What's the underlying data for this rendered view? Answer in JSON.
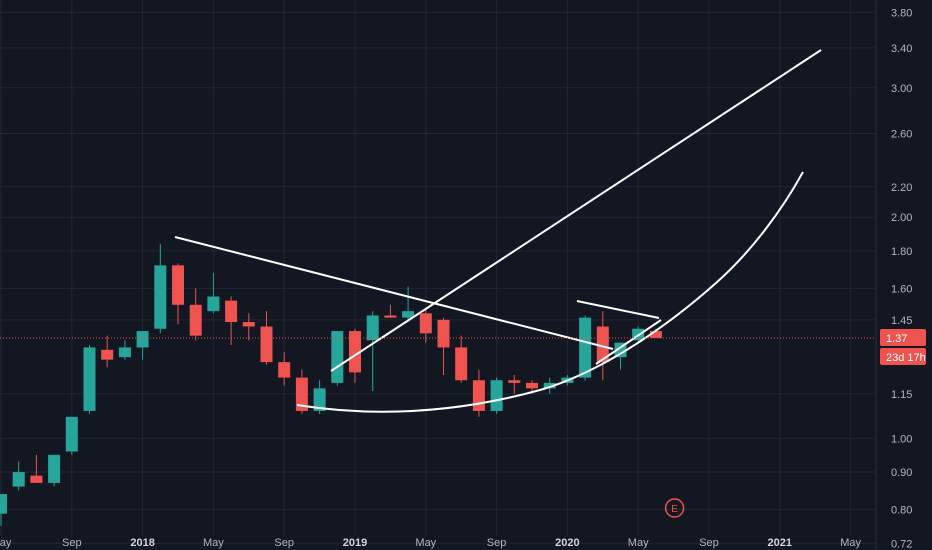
{
  "chart_data": {
    "type": "candlestick",
    "interval": "monthly",
    "y_scale": "log",
    "ylim": [
      0.705,
      3.95
    ],
    "grid": true,
    "colors": {
      "up": "#26a69a",
      "down": "#ef5350",
      "background": "#131722",
      "grid": "#232733",
      "drawings": "#ffffff",
      "price_line": "#ef5350",
      "axis_text": "#b2b5be"
    },
    "y_ticks": [
      "3.80",
      "3.40",
      "3.00",
      "2.60",
      "2.20",
      "2.00",
      "1.80",
      "1.60",
      "1.45",
      "1.15",
      "1.00",
      "0.90",
      "0.80",
      "0.72"
    ],
    "x_ticks": [
      {
        "t": 0,
        "label": "May",
        "bold": false
      },
      {
        "t": 4,
        "label": "Sep",
        "bold": false
      },
      {
        "t": 8,
        "label": "2018",
        "bold": true
      },
      {
        "t": 12,
        "label": "May",
        "bold": false
      },
      {
        "t": 16,
        "label": "Sep",
        "bold": false
      },
      {
        "t": 20,
        "label": "2019",
        "bold": true
      },
      {
        "t": 24,
        "label": "May",
        "bold": false
      },
      {
        "t": 28,
        "label": "Sep",
        "bold": false
      },
      {
        "t": 32,
        "label": "2020",
        "bold": true
      },
      {
        "t": 36,
        "label": "May",
        "bold": false
      },
      {
        "t": 40,
        "label": "Sep",
        "bold": false
      },
      {
        "t": 44,
        "label": "2021",
        "bold": true
      },
      {
        "t": 48,
        "label": "May",
        "bold": false
      }
    ],
    "candles": [
      {
        "t": 0,
        "o": 0.79,
        "h": 0.84,
        "l": 0.76,
        "c": 0.84
      },
      {
        "t": 1,
        "o": 0.86,
        "h": 0.93,
        "l": 0.85,
        "c": 0.9
      },
      {
        "t": 2,
        "o": 0.89,
        "h": 0.95,
        "l": 0.87,
        "c": 0.87
      },
      {
        "t": 3,
        "o": 0.87,
        "h": 0.95,
        "l": 0.86,
        "c": 0.95
      },
      {
        "t": 4,
        "o": 0.96,
        "h": 1.07,
        "l": 0.95,
        "c": 1.07
      },
      {
        "t": 5,
        "o": 1.09,
        "h": 1.34,
        "l": 1.08,
        "c": 1.33
      },
      {
        "t": 6,
        "o": 1.32,
        "h": 1.38,
        "l": 1.25,
        "c": 1.28
      },
      {
        "t": 7,
        "o": 1.29,
        "h": 1.36,
        "l": 1.28,
        "c": 1.33
      },
      {
        "t": 8,
        "o": 1.33,
        "h": 1.39,
        "l": 1.28,
        "c": 1.4
      },
      {
        "t": 9,
        "o": 1.41,
        "h": 1.84,
        "l": 1.39,
        "c": 1.72
      },
      {
        "t": 10,
        "o": 1.72,
        "h": 1.73,
        "l": 1.43,
        "c": 1.52
      },
      {
        "t": 11,
        "o": 1.52,
        "h": 1.6,
        "l": 1.36,
        "c": 1.38
      },
      {
        "t": 12,
        "o": 1.49,
        "h": 1.68,
        "l": 1.48,
        "c": 1.56
      },
      {
        "t": 13,
        "o": 1.54,
        "h": 1.56,
        "l": 1.34,
        "c": 1.44
      },
      {
        "t": 14,
        "o": 1.44,
        "h": 1.48,
        "l": 1.36,
        "c": 1.42
      },
      {
        "t": 15,
        "o": 1.42,
        "h": 1.49,
        "l": 1.26,
        "c": 1.27
      },
      {
        "t": 16,
        "o": 1.27,
        "h": 1.31,
        "l": 1.18,
        "c": 1.21
      },
      {
        "t": 17,
        "o": 1.21,
        "h": 1.24,
        "l": 1.08,
        "c": 1.09
      },
      {
        "t": 18,
        "o": 1.09,
        "h": 1.2,
        "l": 1.08,
        "c": 1.17
      },
      {
        "t": 19,
        "o": 1.19,
        "h": 1.4,
        "l": 1.18,
        "c": 1.4
      },
      {
        "t": 20,
        "o": 1.4,
        "h": 1.41,
        "l": 1.19,
        "c": 1.23
      },
      {
        "t": 21,
        "o": 1.36,
        "h": 1.49,
        "l": 1.16,
        "c": 1.47
      },
      {
        "t": 22,
        "o": 1.47,
        "h": 1.52,
        "l": 1.46,
        "c": 1.46
      },
      {
        "t": 23,
        "o": 1.46,
        "h": 1.61,
        "l": 1.44,
        "c": 1.49
      },
      {
        "t": 24,
        "o": 1.48,
        "h": 1.5,
        "l": 1.35,
        "c": 1.39
      },
      {
        "t": 25,
        "o": 1.45,
        "h": 1.46,
        "l": 1.22,
        "c": 1.33
      },
      {
        "t": 26,
        "o": 1.33,
        "h": 1.38,
        "l": 1.19,
        "c": 1.2
      },
      {
        "t": 27,
        "o": 1.2,
        "h": 1.24,
        "l": 1.07,
        "c": 1.09
      },
      {
        "t": 28,
        "o": 1.09,
        "h": 1.21,
        "l": 1.08,
        "c": 1.2
      },
      {
        "t": 29,
        "o": 1.2,
        "h": 1.22,
        "l": 1.15,
        "c": 1.19
      },
      {
        "t": 30,
        "o": 1.19,
        "h": 1.2,
        "l": 1.15,
        "c": 1.17
      },
      {
        "t": 31,
        "o": 1.17,
        "h": 1.21,
        "l": 1.15,
        "c": 1.19
      },
      {
        "t": 32,
        "o": 1.19,
        "h": 1.22,
        "l": 1.18,
        "c": 1.21
      },
      {
        "t": 33,
        "o": 1.21,
        "h": 1.47,
        "l": 1.2,
        "c": 1.46
      },
      {
        "t": 34,
        "o": 1.42,
        "h": 1.49,
        "l": 1.2,
        "c": 1.27
      },
      {
        "t": 35,
        "o": 1.29,
        "h": 1.35,
        "l": 1.24,
        "c": 1.35
      },
      {
        "t": 36,
        "o": 1.36,
        "h": 1.42,
        "l": 1.35,
        "c": 1.41
      },
      {
        "t": 37,
        "o": 1.4,
        "h": 1.41,
        "l": 1.37,
        "c": 1.37
      }
    ],
    "last_price": {
      "value": 1.37,
      "label": "1.37",
      "countdown": "23d 17h",
      "color": "#ef5350"
    },
    "event_marker": {
      "label": "E",
      "t": 38
    }
  }
}
